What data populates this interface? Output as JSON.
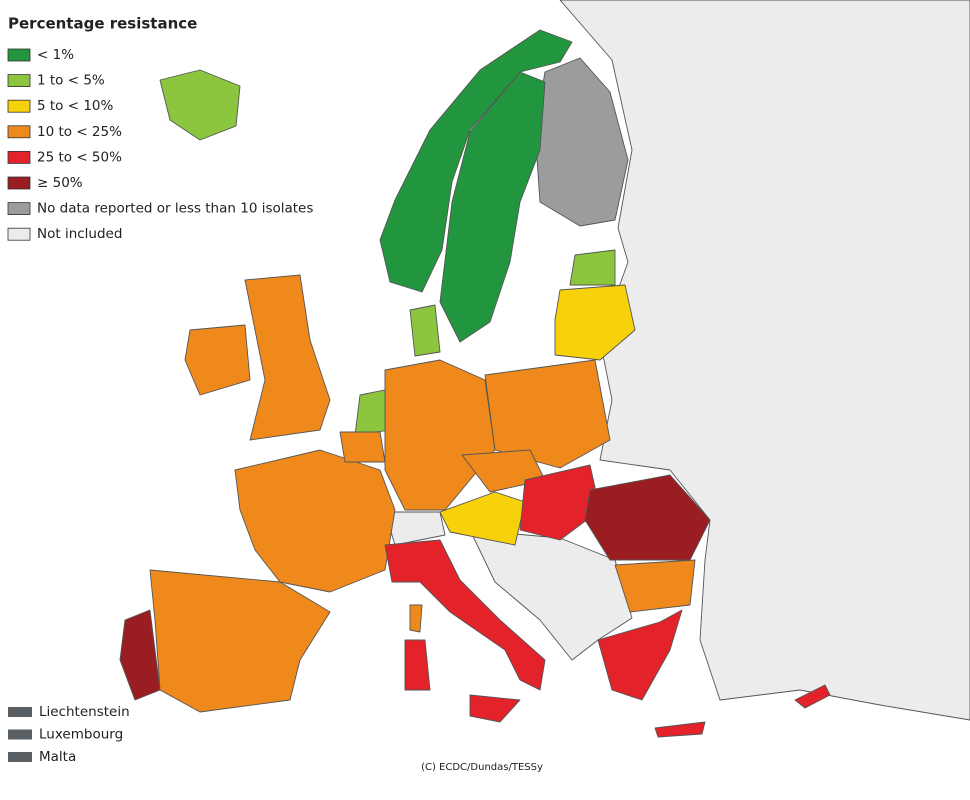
{
  "legend": {
    "title": "Percentage resistance",
    "items": [
      {
        "label": "< 1%",
        "color": "#22963f"
      },
      {
        "label": "1 to < 5%",
        "color": "#8cc63f"
      },
      {
        "label": "5 to < 10%",
        "color": "#f7d10a"
      },
      {
        "label": "10 to < 25%",
        "color": "#f0891c"
      },
      {
        "label": "25 to < 50%",
        "color": "#e3222a"
      },
      {
        "label": "≥ 50%",
        "color": "#9a1d22"
      },
      {
        "label": "No data reported or less than 10 isolates",
        "color": "#9c9c9c"
      },
      {
        "label": "Not included",
        "color": "#ececec"
      }
    ]
  },
  "small_countries": {
    "items": [
      {
        "label": "Liechtenstein",
        "color": "#5a5f63"
      },
      {
        "label": "Luxembourg",
        "color": "#5a5f63"
      },
      {
        "label": "Malta",
        "color": "#5a5f63"
      }
    ]
  },
  "credit": "(C) ECDC/Dundas/TESSy"
}
